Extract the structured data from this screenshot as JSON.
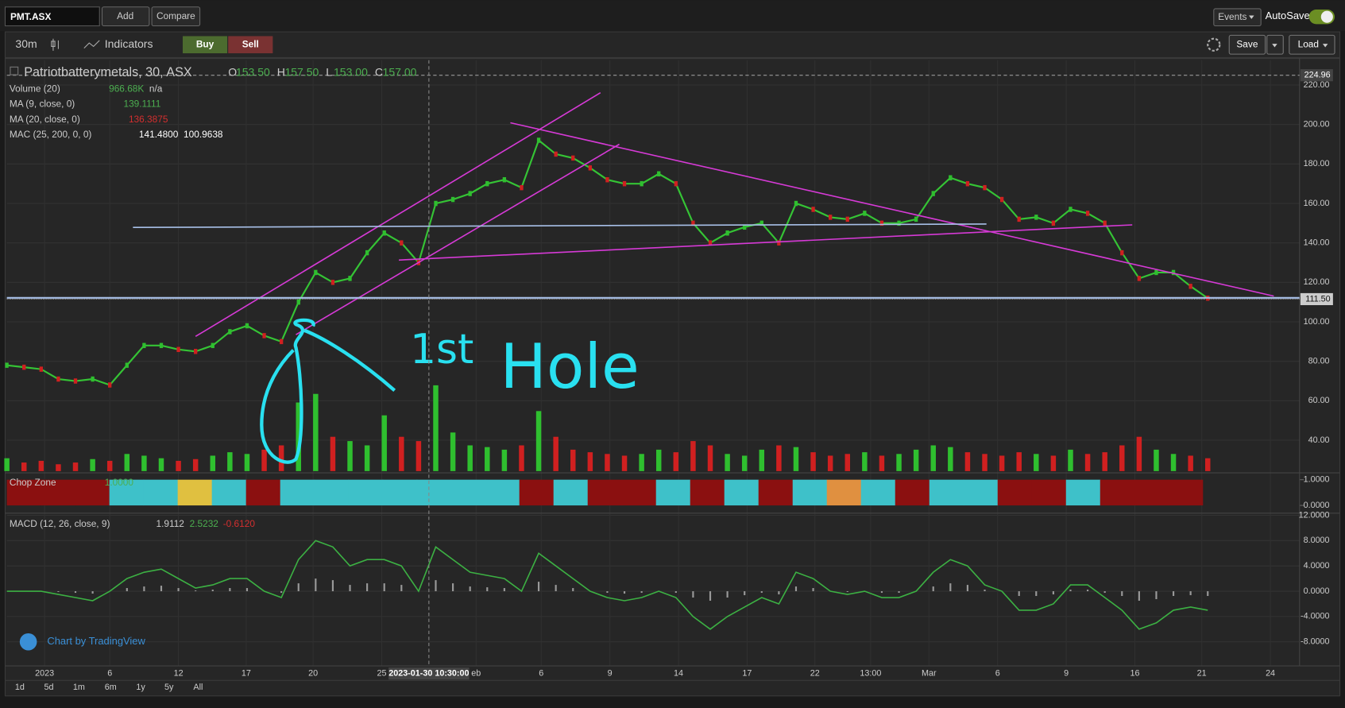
{
  "toolbar": {
    "symbol": "PMT.ASX",
    "add": "Add",
    "compare": "Compare",
    "events": "Events",
    "autosave": "AutoSave"
  },
  "chart_toolbar": {
    "interval": "30m",
    "indicators": "Indicators",
    "buy": "Buy",
    "sell": "Sell",
    "save": "Save",
    "load": "Load"
  },
  "legend": {
    "title": "Patriotbatterymetals, 30, ASX",
    "ohlc": [
      {
        "label": "O",
        "value": "153.50"
      },
      {
        "label": "H",
        "value": "157.50"
      },
      {
        "label": "L",
        "value": "153.00"
      },
      {
        "label": "C",
        "value": "157.00"
      }
    ]
  },
  "indicators": [
    {
      "name": "Volume (20)",
      "values": [
        "966.68K",
        "n/a"
      ],
      "colors": [
        "#4caf50",
        "#cccccc"
      ]
    },
    {
      "name": "MA (9, close, 0)",
      "values": [
        "139.1111"
      ],
      "colors": [
        "#4caf50"
      ]
    },
    {
      "name": "MA (20, close, 0)",
      "values": [
        "136.3875"
      ],
      "colors": [
        "#d32f2f"
      ]
    },
    {
      "name": "MAC (25, 200, 0, 0)",
      "values": [
        "141.4800",
        "100.9638"
      ],
      "colors": [
        "#ffffff",
        "#ffffff"
      ]
    }
  ],
  "price_axis": {
    "ticks": [
      {
        "value": 220,
        "label": "220.00"
      },
      {
        "value": 200,
        "label": "200.00"
      },
      {
        "value": 180,
        "label": "180.00"
      },
      {
        "value": 160,
        "label": "160.00"
      },
      {
        "value": 140,
        "label": "140.00"
      },
      {
        "value": 120,
        "label": "120.00"
      },
      {
        "value": 100,
        "label": "100.00"
      },
      {
        "value": 80,
        "label": "80.00"
      },
      {
        "value": 60,
        "label": "60.00"
      },
      {
        "value": 40,
        "label": "40.00"
      }
    ],
    "crosshair": {
      "value": 224.96,
      "label": "224.96"
    },
    "last": {
      "value": 111.5,
      "label": "111.50"
    }
  },
  "price": {
    "close": [
      78,
      77,
      76,
      71,
      70,
      71,
      68,
      78,
      88,
      88,
      86,
      85,
      88,
      95,
      98,
      93,
      90,
      110,
      125,
      120,
      122,
      135,
      145,
      140,
      130,
      160,
      162,
      165,
      170,
      172,
      168,
      192,
      185,
      183,
      178,
      172,
      170,
      170,
      175,
      170,
      150,
      140,
      145,
      148,
      150,
      140,
      160,
      157,
      153,
      152,
      155,
      150,
      150,
      152,
      165,
      173,
      170,
      168,
      162,
      152,
      153,
      150,
      157,
      155,
      150,
      135,
      122,
      125,
      125,
      118,
      112
    ],
    "volume": [
      15,
      10,
      12,
      8,
      10,
      14,
      12,
      20,
      18,
      15,
      12,
      14,
      18,
      22,
      20,
      25,
      30,
      80,
      90,
      40,
      35,
      30,
      65,
      40,
      35,
      100,
      45,
      30,
      28,
      25,
      30,
      70,
      40,
      25,
      22,
      20,
      18,
      20,
      25,
      22,
      35,
      30,
      20,
      18,
      25,
      30,
      28,
      22,
      18,
      20,
      22,
      18,
      20,
      25,
      30,
      28,
      22,
      20,
      18,
      22,
      20,
      18,
      25,
      20,
      22,
      30,
      40,
      25,
      20,
      18,
      15
    ]
  },
  "chop_zone": {
    "title": "Chop Zone",
    "value": "1.0000",
    "ticks": [
      {
        "value": 1,
        "label": "1.0000"
      },
      {
        "value": 0,
        "label": "0.0000"
      }
    ],
    "segments": [
      "#8b1010",
      "#8b1010",
      "#8b1010",
      "#3ec1c9",
      "#3ec1c9",
      "#e0c040",
      "#3ec1c9",
      "#8b1010",
      "#3ec1c9",
      "#3ec1c9",
      "#3ec1c9",
      "#3ec1c9",
      "#3ec1c9",
      "#3ec1c9",
      "#3ec1c9",
      "#8b1010",
      "#3ec1c9",
      "#8b1010",
      "#8b1010",
      "#3ec1c9",
      "#8b1010",
      "#3ec1c9",
      "#8b1010",
      "#3ec1c9",
      "#e09040",
      "#3ec1c9",
      "#8b1010",
      "#3ec1c9",
      "#3ec1c9",
      "#8b1010",
      "#8b1010",
      "#3ec1c9",
      "#8b1010",
      "#8b1010",
      "#8b1010"
    ]
  },
  "macd": {
    "title": "MACD (12, 26, close, 9)",
    "values": [
      "1.9112",
      "2.5232",
      "-0.6120"
    ],
    "colors": [
      "#cccccc",
      "#4caf50",
      "#d32f2f"
    ],
    "ticks": [
      {
        "value": 12,
        "label": "12.0000"
      },
      {
        "value": 8,
        "label": "8.0000"
      },
      {
        "value": 4,
        "label": "4.0000"
      },
      {
        "value": 0,
        "label": "0.0000"
      },
      {
        "value": -4,
        "label": "-4.0000"
      },
      {
        "value": -8,
        "label": "-8.0000"
      }
    ],
    "line": [
      0,
      0,
      0,
      -0.5,
      -1,
      -1.5,
      0,
      2,
      3,
      3.5,
      2,
      0.5,
      1,
      2,
      2,
      0,
      -1,
      5,
      8,
      7,
      4,
      5,
      5,
      4,
      0,
      7,
      5,
      3,
      2.5,
      2,
      0,
      6,
      4,
      2,
      0,
      -1,
      -1.5,
      -1,
      0,
      -1,
      -4,
      -6,
      -4,
      -2.5,
      -1,
      -2,
      3,
      2,
      0,
      -0.5,
      0,
      -1,
      -1,
      0,
      3,
      5,
      4,
      1,
      0,
      -3,
      -3,
      -2,
      1,
      1,
      -1,
      -3,
      -6,
      -5,
      -3,
      -2.5,
      -3
    ]
  },
  "time_axis": {
    "labels": [
      "2023",
      "6",
      "12",
      "17",
      "20",
      "25",
      "eb",
      "6",
      "9",
      "14",
      "17",
      "22",
      "13:00",
      "Mar",
      "6",
      "9",
      "16",
      "21",
      "24"
    ],
    "crosshair": "2023-01-30 10:30:00"
  },
  "ranges": [
    "1d",
    "5d",
    "1m",
    "6m",
    "1y",
    "5y",
    "All"
  ],
  "annotations": [
    "1st",
    "Hole"
  ],
  "attribution": "Chart by TradingView"
}
